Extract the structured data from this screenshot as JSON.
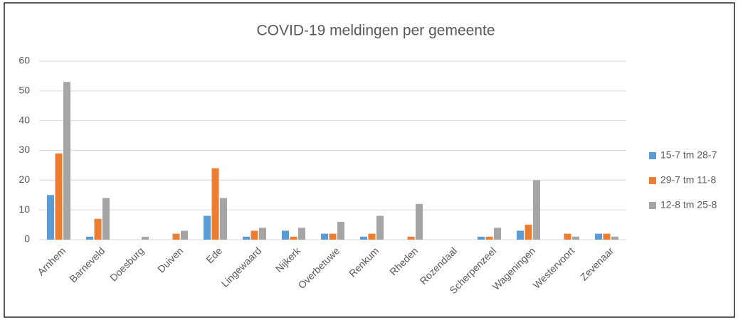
{
  "chart_data": {
    "type": "bar",
    "title": "COVID-19 meldingen per gemeente",
    "categories": [
      "Arnhem",
      "Barneveld",
      "Doesburg",
      "Duiven",
      "Ede",
      "Lingewaard",
      "Nijkerk",
      "Overbetuwe",
      "Renkum",
      "Rheden",
      "Rozendaal",
      "Scherpenzeel",
      "Wageningen",
      "Westervoort",
      "Zevenaar"
    ],
    "series": [
      {
        "name": "15-7 tm 28-7",
        "color": "#5b9bd5",
        "values": [
          15,
          1,
          0,
          0,
          8,
          1,
          3,
          2,
          1,
          0,
          0,
          1,
          3,
          0,
          2
        ]
      },
      {
        "name": "29-7 tm 11-8",
        "color": "#ed7d31",
        "values": [
          29,
          7,
          0,
          2,
          24,
          3,
          1,
          2,
          2,
          1,
          0,
          1,
          5,
          2,
          2
        ]
      },
      {
        "name": "12-8 tm 25-8",
        "color": "#a5a5a5",
        "values": [
          53,
          14,
          1,
          3,
          14,
          4,
          4,
          6,
          8,
          12,
          0,
          4,
          20,
          1,
          1
        ]
      }
    ],
    "ylim": [
      0,
      60
    ],
    "yticks": [
      0,
      10,
      20,
      30,
      40,
      50,
      60
    ],
    "grid": true,
    "legend": "right"
  }
}
